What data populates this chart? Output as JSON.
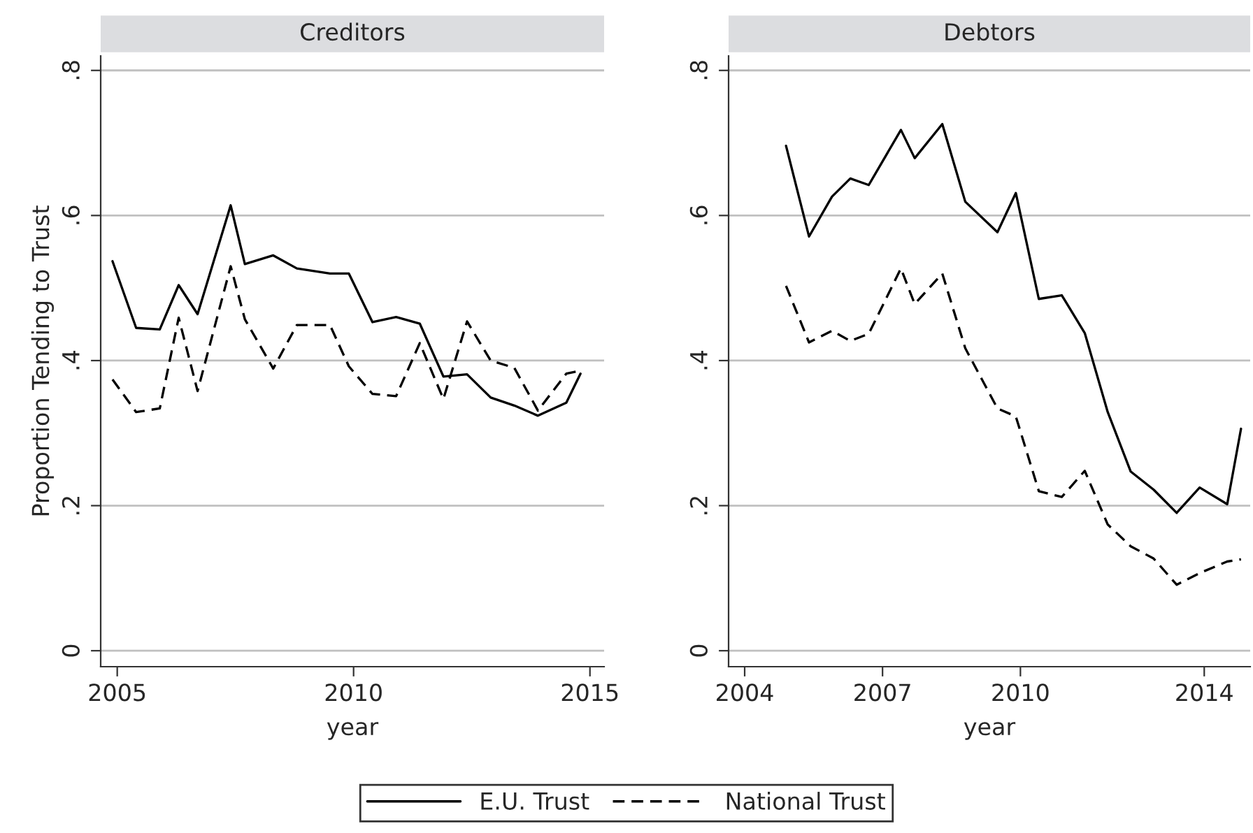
{
  "chart_data": [
    {
      "type": "line",
      "title": "Creditors",
      "xlabel": "year",
      "ylabel": "Proportion Tending to Trust",
      "x": [
        2004.9,
        2005.4,
        2005.9,
        2006.3,
        2006.7,
        2007.4,
        2007.7,
        2008.3,
        2008.8,
        2009.5,
        2009.9,
        2010.4,
        2010.9,
        2011.4,
        2011.9,
        2012.4,
        2012.9,
        2013.4,
        2013.9,
        2014.5,
        2014.8
      ],
      "series": [
        {
          "name": "E.U. Trust",
          "color": "#000000",
          "line_style": "solid",
          "values": [
            0.537,
            0.445,
            0.443,
            0.504,
            0.464,
            0.614,
            0.533,
            0.545,
            0.527,
            0.52,
            0.52,
            0.453,
            0.46,
            0.451,
            0.378,
            0.381,
            0.349,
            0.338,
            0.324,
            0.342,
            0.382
          ]
        },
        {
          "name": "National Trust",
          "color": "#000000",
          "line_style": "dashed",
          "values": [
            0.374,
            0.329,
            0.334,
            0.459,
            0.358,
            0.53,
            0.457,
            0.389,
            0.449,
            0.449,
            0.392,
            0.354,
            0.351,
            0.424,
            0.347,
            0.454,
            0.4,
            0.39,
            0.331,
            0.382,
            0.386
          ]
        }
      ],
      "xlim": [
        2004.65,
        2015.3
      ],
      "xticks": [
        2005,
        2010,
        2015
      ],
      "ylim": [
        -0.022,
        0.82
      ],
      "yticks": [
        {
          "value": 0,
          "label": "0"
        },
        {
          "value": 0.2,
          "label": ".2"
        },
        {
          "value": 0.4,
          "label": ".4"
        },
        {
          "value": 0.6,
          "label": ".6"
        },
        {
          "value": 0.8,
          "label": ".8"
        }
      ],
      "grid": "y",
      "legend": "bottom"
    },
    {
      "type": "line",
      "title": "Debtors",
      "xlabel": "year",
      "x": [
        2004.9,
        2005.4,
        2005.9,
        2006.3,
        2006.7,
        2007.4,
        2007.7,
        2008.3,
        2008.8,
        2009.5,
        2009.9,
        2010.4,
        2010.9,
        2011.4,
        2011.9,
        2012.4,
        2012.9,
        2013.4,
        2013.9,
        2014.5,
        2014.8
      ],
      "series": [
        {
          "name": "E.U. Trust",
          "color": "#000000",
          "line_style": "solid",
          "values": [
            0.696,
            0.571,
            0.626,
            0.651,
            0.642,
            0.718,
            0.679,
            0.726,
            0.619,
            0.577,
            0.631,
            0.485,
            0.49,
            0.438,
            0.329,
            0.247,
            0.222,
            0.19,
            0.225,
            0.202,
            0.306
          ]
        },
        {
          "name": "National Trust",
          "color": "#000000",
          "line_style": "dashed",
          "values": [
            0.503,
            0.425,
            0.441,
            0.427,
            0.437,
            0.527,
            0.478,
            0.52,
            0.417,
            0.334,
            0.323,
            0.22,
            0.212,
            0.248,
            0.174,
            0.144,
            0.127,
            0.091,
            0.107,
            0.123,
            0.126
          ]
        }
      ],
      "xlim": [
        2003.65,
        2015.0
      ],
      "xticks": [
        2004,
        2007,
        2010,
        2014
      ],
      "ylim": [
        -0.022,
        0.82
      ],
      "yticks": [
        {
          "value": 0,
          "label": "0"
        },
        {
          "value": 0.2,
          "label": ".2"
        },
        {
          "value": 0.4,
          "label": ".4"
        },
        {
          "value": 0.6,
          "label": ".6"
        },
        {
          "value": 0.8,
          "label": ".8"
        }
      ],
      "grid": "y"
    }
  ]
}
